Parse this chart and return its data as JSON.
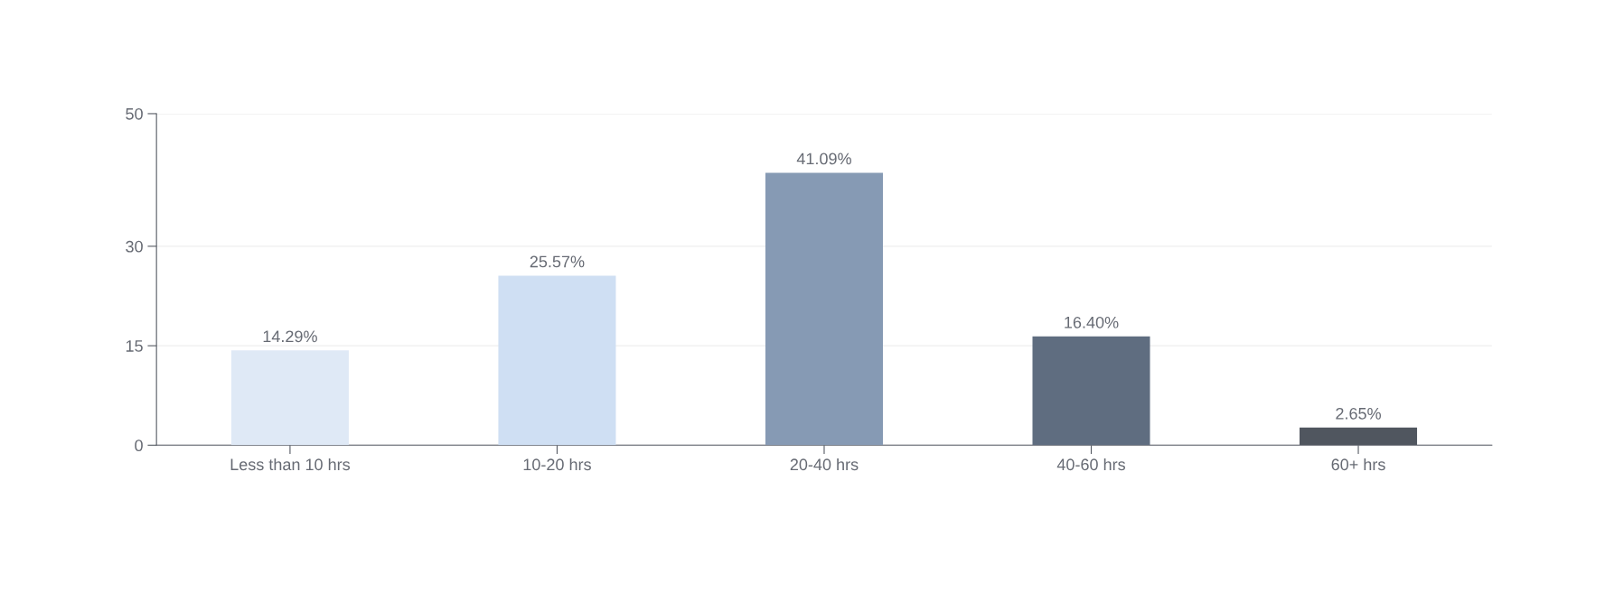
{
  "chart_data": {
    "type": "bar",
    "categories": [
      "Less than 10 hrs",
      "10-20 hrs",
      "20-40 hrs",
      "40-60 hrs",
      "60+ hrs"
    ],
    "values": [
      14.29,
      25.57,
      41.09,
      16.4,
      2.65
    ],
    "value_labels": [
      "14.29%",
      "25.57%",
      "41.09%",
      "16.40%",
      "2.65%"
    ],
    "colors": [
      "#dfe9f6",
      "#cfdff3",
      "#869ab4",
      "#5f6d80",
      "#50565f"
    ],
    "ylim": [
      0,
      50
    ],
    "yticks": [
      0,
      15,
      30,
      50
    ],
    "grid": "y"
  }
}
